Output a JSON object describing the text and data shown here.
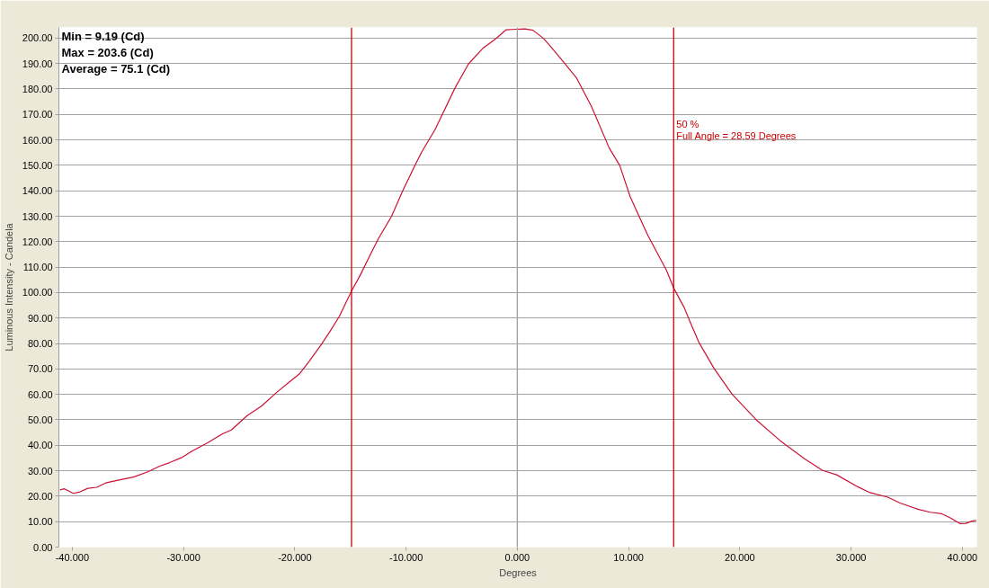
{
  "chart_data": {
    "type": "line",
    "xlabel": "Degrees",
    "ylabel": "Luminous Intensity - Candela",
    "annotations": [
      "Min = 9.19 (Cd)",
      "Max = 203.6 (Cd)",
      "Average = 75.1 (Cd)",
      {
        "text": "50 %\nFull Angle = 28.59 Degrees",
        "x": 14.05,
        "y": 168.5
      }
    ],
    "x": [
      -41.1,
      -40.7,
      -39.9,
      -39.3,
      -38.6,
      -37.8,
      -37.0,
      -35.9,
      -34.5,
      -33.2,
      -32.1,
      -31.3,
      -30.2,
      -29.2,
      -27.8,
      -26.5,
      -25.7,
      -24.3,
      -23.0,
      -21.6,
      -20.5,
      -19.6,
      -18.7,
      -17.6,
      -16.8,
      -16.0,
      -14.9,
      -14.1,
      -13.3,
      -12.5,
      -11.3,
      -10.3,
      -9.2,
      -8.6,
      -7.4,
      -5.6,
      -4.4,
      -3.05,
      -2.0,
      -1.0,
      -0.1,
      0.7,
      1.4,
      2.3,
      2.9,
      4.2,
      5.3,
      6.65,
      8.25,
      9.2,
      10.15,
      10.95,
      11.75,
      12.55,
      13.4,
      14.05,
      15.0,
      15.5,
      16.3,
      17.7,
      19.3,
      21.45,
      23.6,
      25.75,
      27.4,
      28.7,
      30.6,
      31.7,
      33.3,
      34.4,
      36.0,
      37.1,
      38.15,
      38.95,
      39.8,
      40.3,
      40.85,
      41.25
    ],
    "values": [
      22.5,
      22.9,
      21.1,
      21.7,
      23.1,
      23.5,
      25.2,
      26.3,
      27.5,
      29.6,
      31.9,
      33.1,
      35.1,
      37.8,
      41.1,
      44.5,
      46.0,
      51.6,
      55.4,
      60.9,
      64.8,
      68.0,
      73.0,
      79.7,
      85.0,
      90.6,
      100.6,
      107.0,
      114.1,
      121.1,
      130,
      140,
      150,
      155.2,
      164.0,
      180.4,
      189.8,
      196.2,
      199.5,
      203.3,
      203.5,
      203.6,
      203.1,
      200.1,
      197.2,
      190.4,
      184.5,
      173.3,
      156.9,
      150,
      137.6,
      129.9,
      122.3,
      115.8,
      108.8,
      101.8,
      94.1,
      88.8,
      80.6,
      70.1,
      60.1,
      50.1,
      41.9,
      34.9,
      30.2,
      28.4,
      23.7,
      21.4,
      19.6,
      17.3,
      14.9,
      13.7,
      13.1,
      11.4,
      9.2,
      9.3,
      10.2,
      10.5
    ],
    "color": "#cc1133",
    "xlim": [
      -41.2,
      41.3
    ],
    "xticks": [
      {
        "value": -40,
        "label": "-40.000"
      },
      {
        "value": -30,
        "label": "-30.000"
      },
      {
        "value": -20,
        "label": "-20.000"
      },
      {
        "value": -10,
        "label": "-10.000"
      },
      {
        "value": 0,
        "label": "0.000"
      },
      {
        "value": 10,
        "label": "10.000"
      },
      {
        "value": 20,
        "label": "20.000"
      },
      {
        "value": 30,
        "label": "30.000"
      },
      {
        "value": 40,
        "label": "40.000"
      }
    ],
    "ylim": [
      0,
      204.2
    ],
    "yticks": [
      {
        "value": 0,
        "label": "0.00"
      },
      {
        "value": 10,
        "label": "10.00"
      },
      {
        "value": 20,
        "label": "20.00"
      },
      {
        "value": 30,
        "label": "30.00"
      },
      {
        "value": 40,
        "label": "40.00"
      },
      {
        "value": 50,
        "label": "50.00"
      },
      {
        "value": 60,
        "label": "60.00"
      },
      {
        "value": 70,
        "label": "70.00"
      },
      {
        "value": 80,
        "label": "80.00"
      },
      {
        "value": 90,
        "label": "90.00"
      },
      {
        "value": 100,
        "label": "100.00"
      },
      {
        "value": 110,
        "label": "110.00"
      },
      {
        "value": 120,
        "label": "120.00"
      },
      {
        "value": 130,
        "label": "130.00"
      },
      {
        "value": 140,
        "label": "140.00"
      },
      {
        "value": 150,
        "label": "150.00"
      },
      {
        "value": 160,
        "label": "160.00"
      },
      {
        "value": 170,
        "label": "170.00"
      },
      {
        "value": 180,
        "label": "180.00"
      },
      {
        "value": 190,
        "label": "190.00"
      },
      {
        "value": 200,
        "label": "200.00"
      }
    ],
    "grid": "y",
    "ref_lines": [
      {
        "axis": "x",
        "value": 0,
        "color": "#a0a0a0"
      },
      {
        "axis": "x",
        "value": -14.9,
        "color": "#cc0000"
      },
      {
        "axis": "x",
        "value": 14.05,
        "color": "#cc0000"
      }
    ]
  }
}
